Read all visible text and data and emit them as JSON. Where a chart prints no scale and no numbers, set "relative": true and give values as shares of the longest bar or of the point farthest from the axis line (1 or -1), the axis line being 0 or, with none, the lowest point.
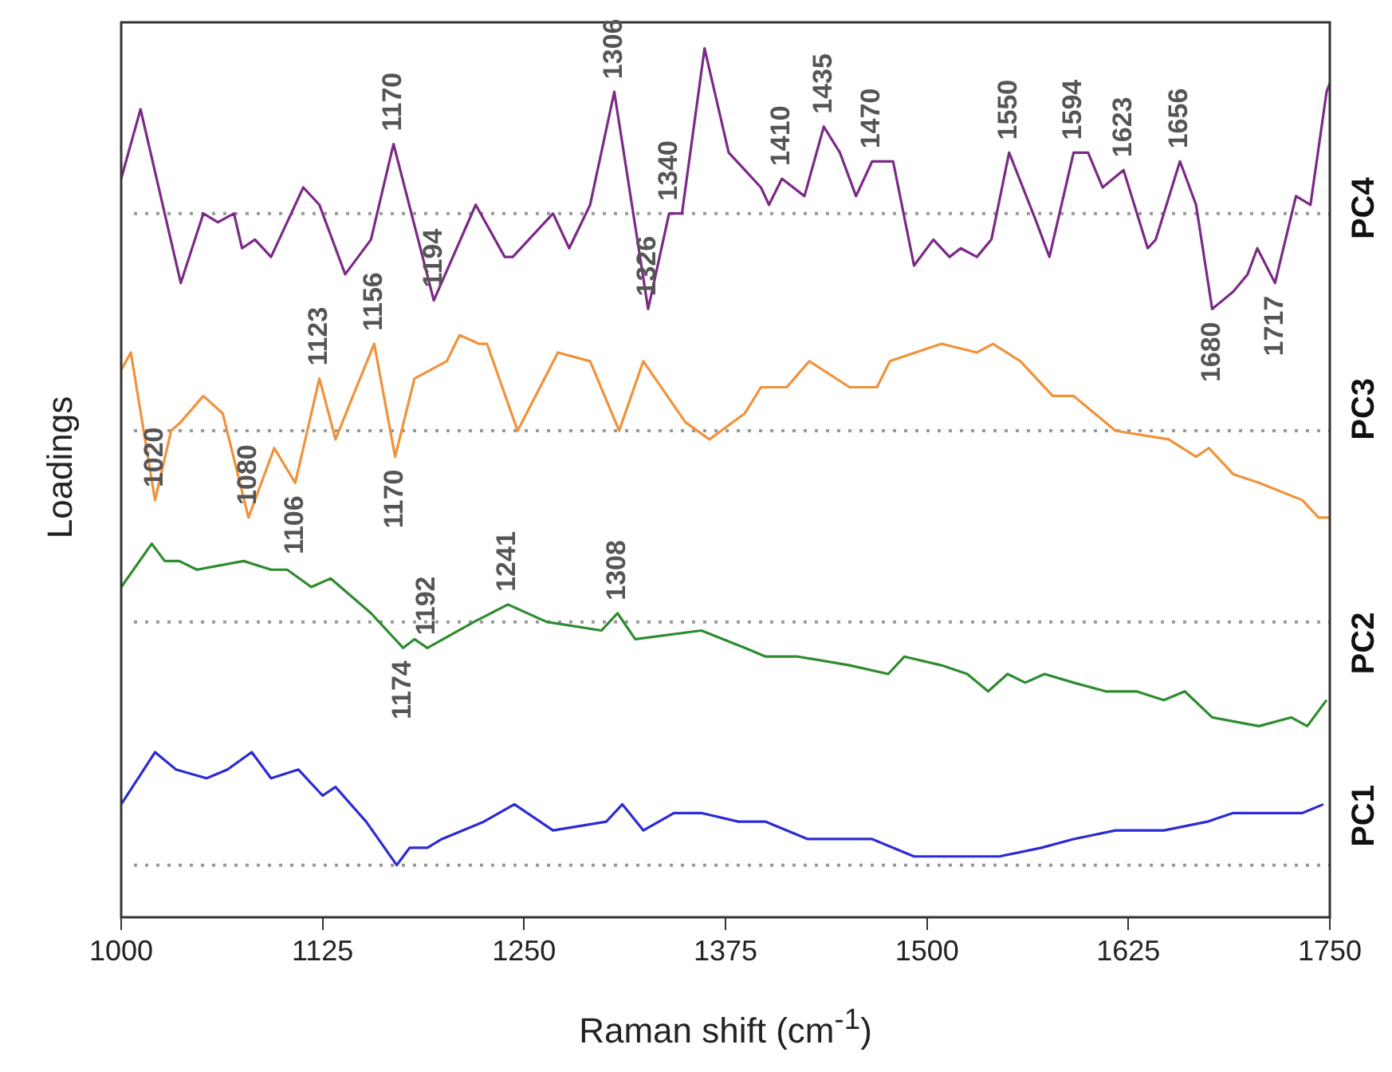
{
  "chart_data": {
    "type": "line",
    "relative": true,
    "xlabel": "Raman shift (cm$^{-1}$)",
    "ylabel": "Loadings",
    "xlim": [
      1000,
      1750
    ],
    "xticks": [
      1000,
      1125,
      1250,
      1375,
      1500,
      1625,
      1750
    ],
    "grid": false,
    "legend": false,
    "marker": "none",
    "line_style": "solid",
    "series": [
      {
        "name": "PC1",
        "color": "#2b2bd4",
        "x": [
          1000,
          1021,
          1034,
          1053,
          1066,
          1081,
          1093,
          1110,
          1125,
          1133,
          1152,
          1171,
          1179,
          1190,
          1199,
          1225,
          1244,
          1268,
          1301,
          1311,
          1324,
          1343,
          1360,
          1383,
          1400,
          1426,
          1466,
          1492,
          1525,
          1545,
          1571,
          1591,
          1617,
          1647,
          1674,
          1690,
          1723,
          1733,
          1746
        ],
        "values": [
          0.13,
          0.19,
          0.17,
          0.16,
          0.17,
          0.19,
          0.16,
          0.17,
          0.14,
          0.15,
          0.11,
          0.06,
          0.08,
          0.08,
          0.09,
          0.11,
          0.13,
          0.1,
          0.11,
          0.13,
          0.1,
          0.12,
          0.12,
          0.11,
          0.11,
          0.09,
          0.09,
          0.07,
          0.07,
          0.07,
          0.08,
          0.09,
          0.1,
          0.1,
          0.11,
          0.12,
          0.12,
          0.12,
          0.13
        ]
      },
      {
        "name": "PC2",
        "color": "#2e8b2e",
        "x": [
          1000,
          1019,
          1027,
          1036,
          1047,
          1076,
          1093,
          1103,
          1118,
          1130,
          1155,
          1175,
          1182,
          1190,
          1219,
          1240,
          1264,
          1298,
          1308,
          1319,
          1360,
          1387,
          1400,
          1420,
          1452,
          1476,
          1486,
          1509,
          1525,
          1538,
          1550,
          1561,
          1573,
          1591,
          1611,
          1630,
          1647,
          1660,
          1677,
          1706,
          1726,
          1736,
          1748
        ],
        "values": [
          0.38,
          0.43,
          0.41,
          0.41,
          0.4,
          0.41,
          0.4,
          0.4,
          0.38,
          0.39,
          0.35,
          0.31,
          0.32,
          0.31,
          0.34,
          0.36,
          0.34,
          0.33,
          0.35,
          0.32,
          0.33,
          0.31,
          0.3,
          0.3,
          0.29,
          0.28,
          0.3,
          0.29,
          0.28,
          0.26,
          0.28,
          0.27,
          0.28,
          0.27,
          0.26,
          0.26,
          0.25,
          0.26,
          0.23,
          0.22,
          0.23,
          0.22,
          0.25
        ]
      },
      {
        "name": "PC3",
        "color": "#f0923a",
        "x": [
          1000,
          1006,
          1021,
          1031,
          1037,
          1051,
          1063,
          1079,
          1095,
          1108,
          1123,
          1133,
          1146,
          1157,
          1170,
          1182,
          1202,
          1210,
          1222,
          1227,
          1246,
          1271,
          1291,
          1309,
          1324,
          1350,
          1365,
          1387,
          1397,
          1413,
          1427,
          1452,
          1469,
          1477,
          1509,
          1531,
          1541,
          1558,
          1578,
          1591,
          1617,
          1650,
          1667,
          1675,
          1690,
          1706,
          1733,
          1743,
          1750
        ],
        "values": [
          0.63,
          0.65,
          0.48,
          0.56,
          0.57,
          0.6,
          0.58,
          0.46,
          0.54,
          0.5,
          0.62,
          0.55,
          0.61,
          0.66,
          0.53,
          0.62,
          0.64,
          0.67,
          0.66,
          0.66,
          0.56,
          0.65,
          0.64,
          0.56,
          0.64,
          0.57,
          0.55,
          0.58,
          0.61,
          0.61,
          0.64,
          0.61,
          0.61,
          0.64,
          0.66,
          0.65,
          0.66,
          0.64,
          0.6,
          0.6,
          0.56,
          0.55,
          0.53,
          0.54,
          0.51,
          0.5,
          0.48,
          0.46,
          0.46
        ]
      },
      {
        "name": "PC4",
        "color": "#7b2a86",
        "x": [
          1000,
          1012,
          1037,
          1051,
          1060,
          1070,
          1075,
          1083,
          1093,
          1113,
          1123,
          1139,
          1155,
          1169,
          1194,
          1220,
          1238,
          1243,
          1258,
          1268,
          1278,
          1291,
          1306,
          1327,
          1340,
          1348,
          1362,
          1377,
          1387,
          1397,
          1402,
          1410,
          1424,
          1436,
          1446,
          1456,
          1466,
          1479,
          1492,
          1504,
          1514,
          1521,
          1531,
          1540,
          1551,
          1568,
          1576,
          1591,
          1600,
          1609,
          1622,
          1637,
          1642,
          1657,
          1667,
          1677,
          1690,
          1699,
          1705,
          1716,
          1729,
          1738,
          1748,
          1750
        ],
        "values": [
          0.85,
          0.93,
          0.73,
          0.81,
          0.8,
          0.81,
          0.77,
          0.78,
          0.76,
          0.84,
          0.82,
          0.74,
          0.78,
          0.89,
          0.71,
          0.82,
          0.76,
          0.76,
          0.79,
          0.81,
          0.77,
          0.82,
          0.95,
          0.7,
          0.81,
          0.81,
          1,
          0.88,
          0.86,
          0.84,
          0.82,
          0.85,
          0.83,
          0.91,
          0.88,
          0.83,
          0.87,
          0.87,
          0.75,
          0.78,
          0.76,
          0.77,
          0.76,
          0.78,
          0.88,
          0.8,
          0.76,
          0.88,
          0.88,
          0.84,
          0.86,
          0.77,
          0.78,
          0.87,
          0.82,
          0.7,
          0.72,
          0.74,
          0.77,
          0.73,
          0.83,
          0.82,
          0.95,
          0.96
        ]
      }
    ],
    "ref_lines": [
      {
        "axis": "y",
        "value": 0.81,
        "color": "#999999",
        "line_style": "dotted"
      },
      {
        "axis": "y",
        "value": 0.56,
        "color": "#999999",
        "line_style": "dotted"
      },
      {
        "axis": "y",
        "value": 0.34,
        "color": "#999999",
        "line_style": "dotted"
      },
      {
        "axis": "y",
        "value": 0.06,
        "color": "#999999",
        "line_style": "dotted"
      }
    ],
    "annotations": [
      {
        "text": "1170",
        "x": 1169,
        "y": 0.89
      },
      {
        "text": "1194",
        "x": 1194,
        "y": 0.71
      },
      {
        "text": "1306",
        "x": 1306,
        "y": 0.95
      },
      {
        "text": "1326",
        "x": 1327,
        "y": 0.7
      },
      {
        "text": "1340",
        "x": 1340,
        "y": 0.81
      },
      {
        "text": "1410",
        "x": 1410,
        "y": 0.85
      },
      {
        "text": "1435",
        "x": 1436,
        "y": 0.91
      },
      {
        "text": "1470",
        "x": 1466,
        "y": 0.87
      },
      {
        "text": "1550",
        "x": 1551,
        "y": 0.88
      },
      {
        "text": "1594",
        "x": 1591,
        "y": 0.88
      },
      {
        "text": "1623",
        "x": 1622,
        "y": 0.86
      },
      {
        "text": "1656",
        "x": 1657,
        "y": 0.87
      },
      {
        "text": "1680",
        "x": 1677,
        "y": 0.7
      },
      {
        "text": "1717",
        "x": 1716,
        "y": 0.73
      },
      {
        "text": "1020",
        "x": 1021,
        "y": 0.48
      },
      {
        "text": "1080",
        "x": 1079,
        "y": 0.46
      },
      {
        "text": "1106",
        "x": 1108,
        "y": 0.5
      },
      {
        "text": "1123",
        "x": 1123,
        "y": 0.62
      },
      {
        "text": "1156",
        "x": 1157,
        "y": 0.66
      },
      {
        "text": "1170",
        "x": 1170,
        "y": 0.53
      },
      {
        "text": "1241",
        "x": 1240,
        "y": 0.36
      },
      {
        "text": "1308",
        "x": 1308,
        "y": 0.35
      },
      {
        "text": "1174",
        "x": 1175,
        "y": 0.31
      },
      {
        "text": "1192",
        "x": 1190,
        "y": 0.31
      }
    ]
  }
}
